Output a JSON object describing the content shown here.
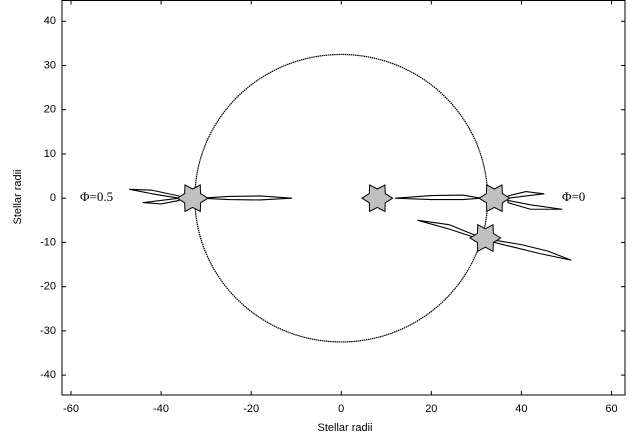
{
  "chart_data": {
    "type": "orbit",
    "xlabel": "Stellar radii",
    "ylabel": "Stellar radii",
    "xlim": [
      -62,
      63
    ],
    "ylim": [
      -44.5,
      44.7
    ],
    "xticks": [
      -60,
      -40,
      -20,
      0,
      20,
      40,
      60
    ],
    "yticks": [
      -40,
      -30,
      -20,
      -10,
      0,
      10,
      20,
      30,
      40
    ],
    "grid": false,
    "orbit": {
      "center": [
        0,
        0
      ],
      "radius": 32.5,
      "color": "#000000"
    },
    "stars": {
      "x": [
        -33,
        8,
        34,
        32
      ],
      "y": [
        0,
        0,
        0,
        -9
      ],
      "size": 3.4,
      "color": "#c0c0c0"
    },
    "lobes": [
      {
        "x": [
          -31,
          -25,
          -18,
          -11,
          -18,
          -25,
          -31
        ],
        "y": [
          0,
          0.4,
          0.5,
          0,
          -0.4,
          -0.3,
          0
        ]
      },
      {
        "x": [
          -36,
          -42,
          -47,
          -42,
          -36
        ],
        "y": [
          0.5,
          1.8,
          2,
          1,
          0
        ]
      },
      {
        "x": [
          -36,
          -40,
          -44,
          -40,
          -36
        ],
        "y": [
          0,
          -0.5,
          -1,
          -1.3,
          -0.5
        ]
      },
      {
        "x": [
          12,
          20,
          27,
          31,
          27,
          20,
          12
        ],
        "y": [
          0,
          0.6,
          0.7,
          0,
          -0.3,
          -0.3,
          0
        ]
      },
      {
        "x": [
          37,
          41,
          45,
          41,
          37
        ],
        "y": [
          0.5,
          1.5,
          1,
          0.5,
          0
        ]
      },
      {
        "x": [
          37,
          42,
          49,
          42,
          37
        ],
        "y": [
          -0.5,
          -1.5,
          -2.5,
          -2.5,
          -1
        ]
      },
      {
        "x": [
          30,
          24,
          17,
          24,
          30
        ],
        "y": [
          -8.5,
          -6,
          -5,
          -7,
          -9
        ]
      },
      {
        "x": [
          34,
          40,
          46,
          51,
          44,
          38,
          34
        ],
        "y": [
          -9.5,
          -10.5,
          -12,
          -14,
          -12.5,
          -11,
          -10
        ]
      }
    ],
    "annotations": [
      {
        "text": "Φ=0.5",
        "x": -58,
        "y": 0
      },
      {
        "text": "Φ=0",
        "x": 49,
        "y": 0
      }
    ]
  }
}
